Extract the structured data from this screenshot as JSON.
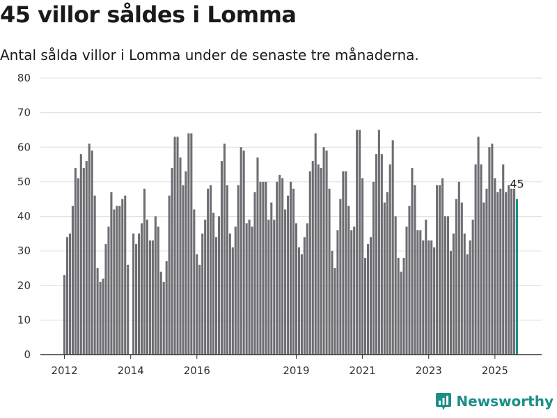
{
  "header": {
    "title": "45 villor såldes i Lomma",
    "subtitle": "Antal sålda villor i Lomma under de senaste tre månaderna."
  },
  "brand": {
    "name": "Newsworthy",
    "icon": "newsworthy-logo-icon"
  },
  "colors": {
    "bar": "#6e6d73",
    "highlight": "#1a9089",
    "grid": "#dddddd",
    "axis": "#333333",
    "brand": "#1a8f86"
  },
  "chart_data": {
    "type": "bar",
    "title": "45 villor såldes i Lomma",
    "subtitle": "Antal sålda villor i Lomma under de senaste tre månaderna.",
    "xlabel": "",
    "ylabel": "",
    "ylim": [
      0,
      80
    ],
    "yticks": [
      0,
      10,
      20,
      30,
      40,
      50,
      60,
      70,
      80
    ],
    "xticks": [
      "2012",
      "2014",
      "2016",
      "2019",
      "2021",
      "2023",
      "2025"
    ],
    "grid": true,
    "x_start": "2012-01",
    "frequency": "monthly",
    "highlighted_last_value": 45,
    "highlight_label": "45",
    "values": [
      23,
      34,
      35,
      43,
      54,
      51,
      58,
      54,
      56,
      61,
      59,
      46,
      25,
      21,
      22,
      32,
      37,
      47,
      42,
      43,
      43,
      45,
      46,
      26,
      0,
      35,
      32,
      35,
      38,
      48,
      39,
      33,
      33,
      40,
      37,
      24,
      21,
      27,
      46,
      54,
      63,
      63,
      57,
      49,
      53,
      64,
      64,
      42,
      29,
      26,
      35,
      39,
      48,
      49,
      41,
      34,
      40,
      56,
      61,
      49,
      35,
      31,
      37,
      49,
      60,
      59,
      38,
      39,
      37,
      47,
      57,
      50,
      50,
      50,
      39,
      44,
      39,
      50,
      52,
      51,
      42,
      46,
      50,
      48,
      38,
      31,
      29,
      34,
      38,
      53,
      56,
      64,
      55,
      54,
      60,
      59,
      48,
      30,
      25,
      36,
      45,
      53,
      53,
      43,
      36,
      37,
      65,
      65,
      51,
      28,
      32,
      34,
      50,
      58,
      65,
      58,
      44,
      47,
      55,
      62,
      40,
      28,
      24,
      28,
      37,
      43,
      54,
      49,
      36,
      36,
      33,
      39,
      33,
      33,
      31,
      49,
      49,
      51,
      40,
      40,
      30,
      35,
      45,
      50,
      44,
      35,
      29,
      33,
      39,
      55,
      63,
      55,
      44,
      48,
      60,
      61,
      51,
      47,
      48,
      55,
      47,
      49,
      48,
      48,
      45
    ]
  }
}
